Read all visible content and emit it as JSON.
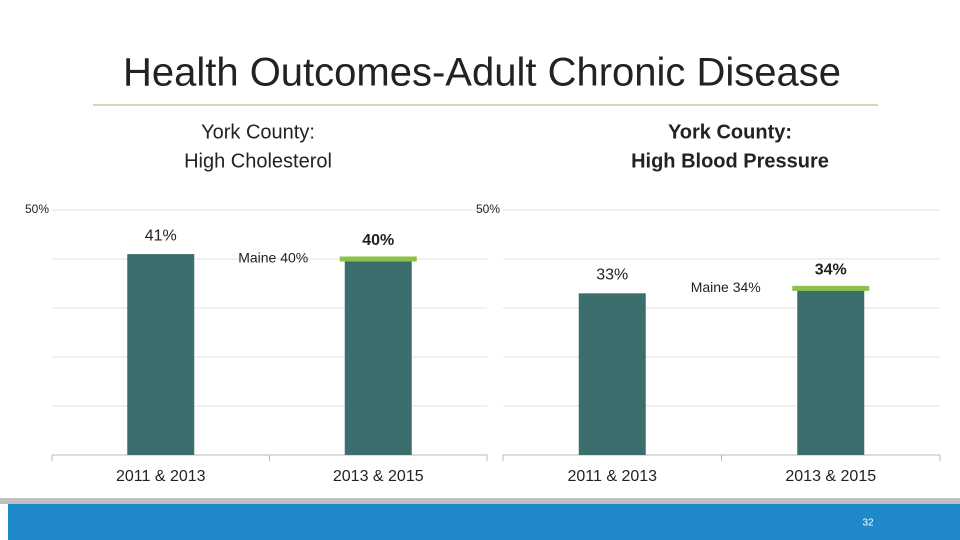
{
  "header": {
    "title": "Health Outcomes-Adult Chronic Disease",
    "page_number": "32"
  },
  "chart_data": [
    {
      "type": "bar",
      "title": [
        "York County:",
        "High Cholesterol"
      ],
      "categories": [
        "2011 & 2013",
        "2013 & 2015"
      ],
      "values": [
        41,
        40
      ],
      "value_labels": [
        "41%",
        "40%"
      ],
      "color": "#3d6e6e",
      "ylim": [
        0,
        50
      ],
      "yticks": [
        {
          "value": 50,
          "label": "50%"
        }
      ],
      "gridlines": [
        10,
        20,
        30,
        40
      ],
      "grid": true,
      "benchmark": {
        "label": "Maine 40%",
        "value": 40,
        "color": "#8bc34a"
      }
    },
    {
      "type": "bar",
      "title": [
        "York County:",
        "High Blood Pressure"
      ],
      "categories": [
        "2011 & 2013",
        "2013 & 2015"
      ],
      "values": [
        33,
        34
      ],
      "value_labels": [
        "33%",
        "34%"
      ],
      "color": "#3d6e6e",
      "ylim": [
        0,
        50
      ],
      "yticks": [
        {
          "value": 50,
          "label": "50%"
        }
      ],
      "gridlines": [
        10,
        20,
        30,
        40
      ],
      "grid": true,
      "benchmark": {
        "label": "Maine 34%",
        "value": 34,
        "color": "#8bc34a"
      }
    }
  ]
}
